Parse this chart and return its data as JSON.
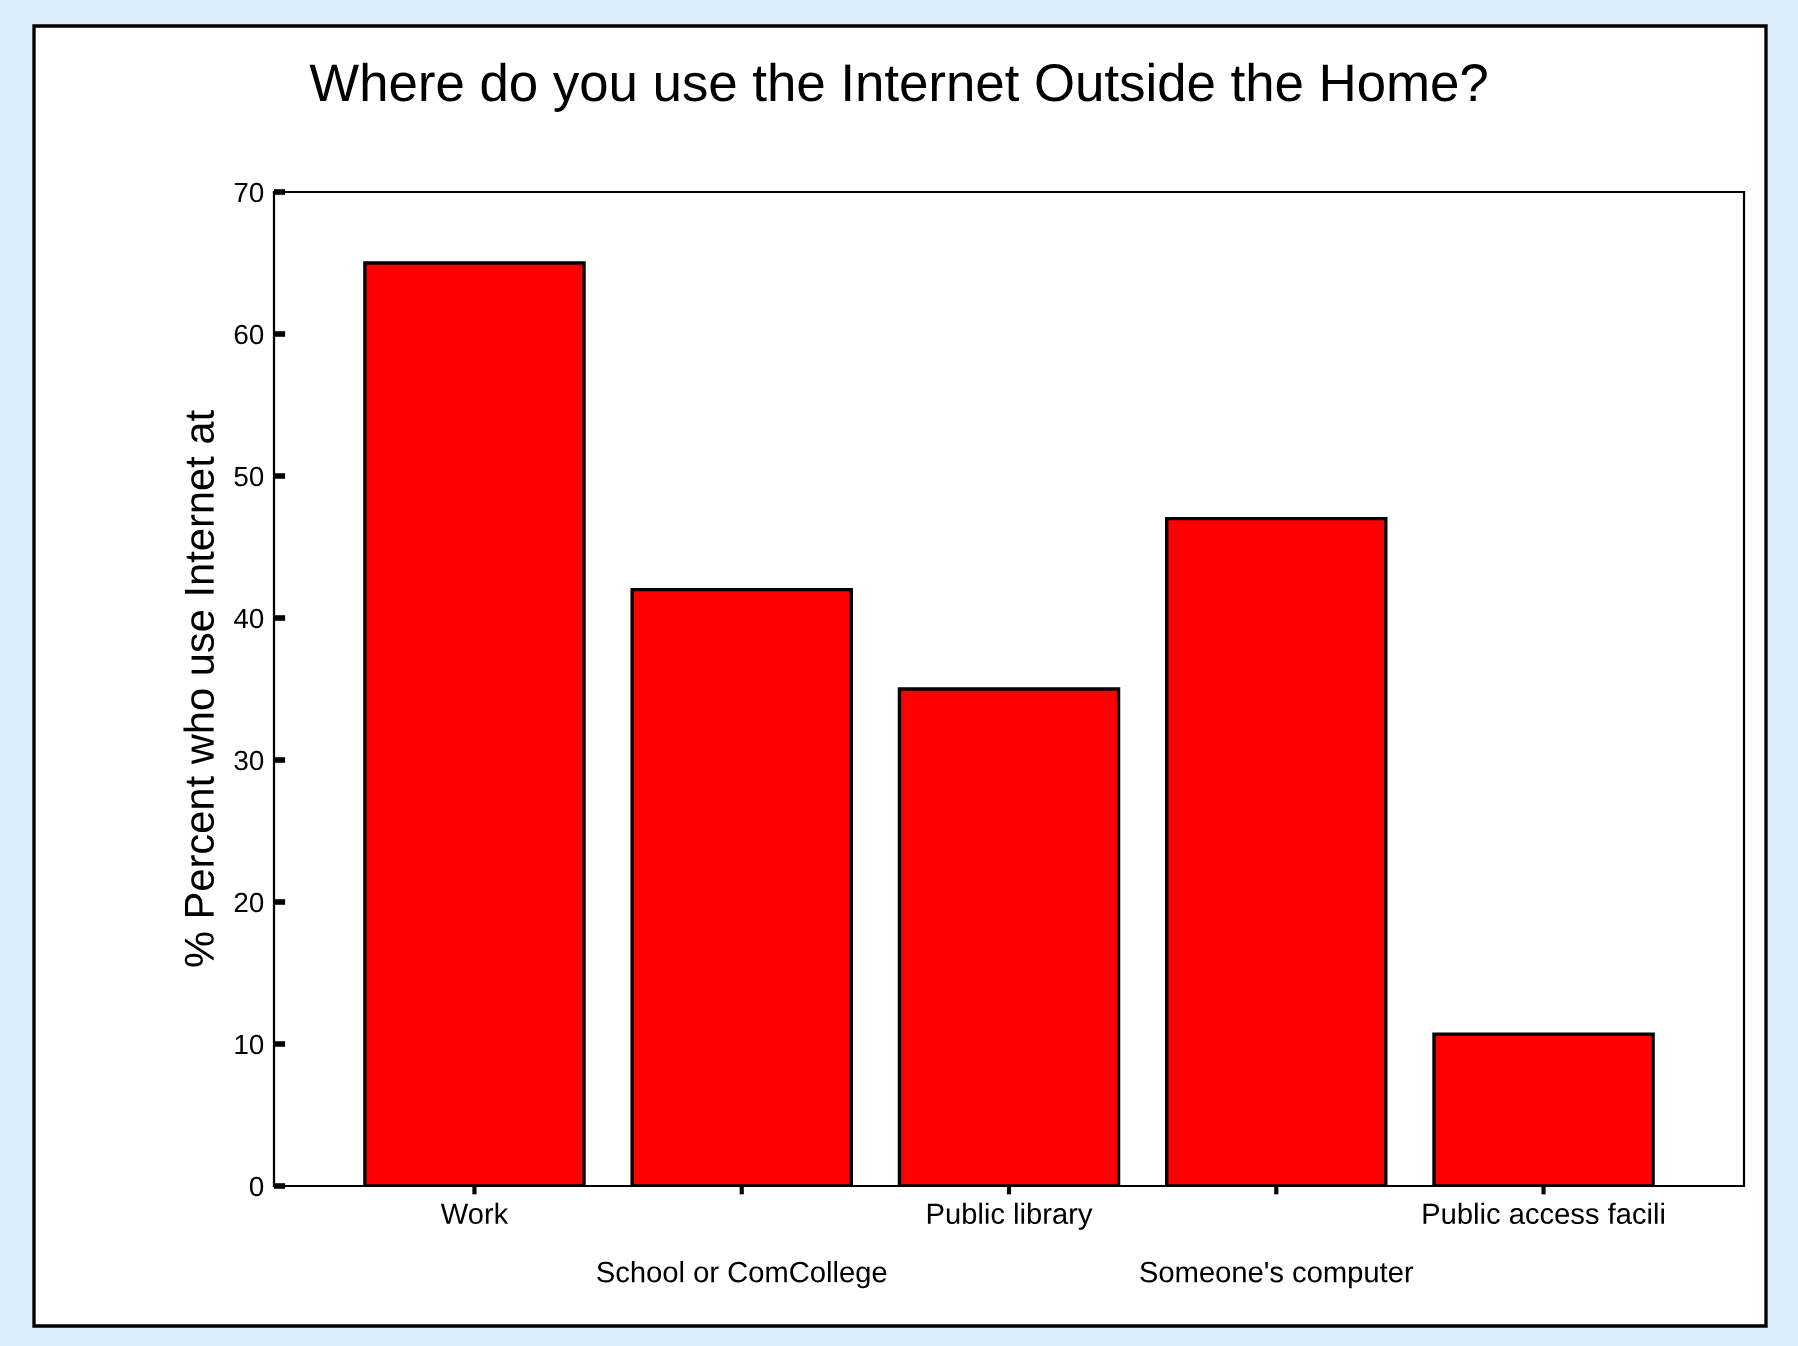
{
  "chart_data": {
    "type": "bar",
    "title": "Where do you use the Internet Outside the Home?",
    "ylabel": "% Percent who use Internet at",
    "categories": [
      "Work",
      "School or ComCollege",
      "Public library",
      "Someone's computer",
      "Public access facili"
    ],
    "values": [
      65,
      42,
      35,
      47,
      10.7
    ],
    "color": "#ff0000",
    "ylim": [
      0,
      70
    ],
    "yticks": [
      0,
      10,
      20,
      30,
      40,
      50,
      60,
      70
    ]
  }
}
